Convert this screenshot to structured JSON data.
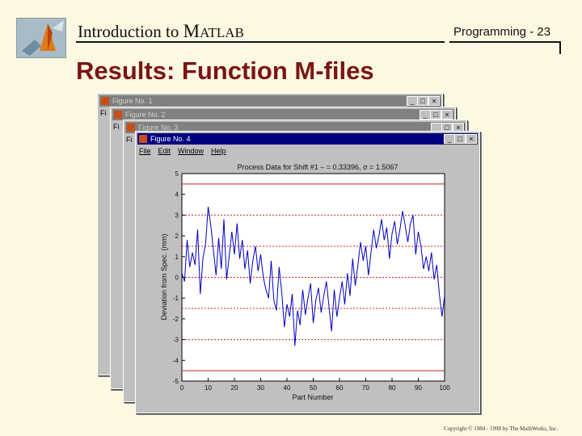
{
  "header": {
    "title_intro": "Introduction to ",
    "title_m": "M",
    "title_rest": "ATLAB",
    "program_label": "Programming - 23"
  },
  "slide_title": "Results: Function M-files",
  "copyright": "Copyright © 1984 - 1998 by The MathWorks, Inc.",
  "windows": [
    {
      "title": "Figure No. 1",
      "stub": "Fi"
    },
    {
      "title": "Figure No. 2",
      "stub": "Fi"
    },
    {
      "title": "Figure No. 3",
      "stub": "Fi"
    },
    {
      "title": "Figure No. 4"
    }
  ],
  "window_buttons": {
    "minimize": "_",
    "maximize": "□",
    "close": "×"
  },
  "menu": [
    "File",
    "Edit",
    "Window",
    "Help"
  ],
  "colors": {
    "title_red": "#7a1414",
    "background": "#fdf8e1",
    "active_title": "#000080",
    "series": "#0000c0",
    "limit_line": "#cc2222"
  },
  "chart_data": {
    "type": "line",
    "title": "Process Data for Shift #1 – = 0.33396, σ = 1.5067",
    "xlabel": "Part Number",
    "ylabel": "Deviation from Spec. (mm)",
    "xlim": [
      0,
      100
    ],
    "ylim": [
      -5,
      5
    ],
    "xticks": [
      0,
      10,
      20,
      30,
      40,
      50,
      60,
      70,
      80,
      90,
      100
    ],
    "yticks": [
      5,
      4,
      3,
      2,
      1,
      0,
      -1,
      -2,
      -3,
      -4,
      -5
    ],
    "ytick_labels": [
      "5",
      "4",
      "3",
      "2",
      "1",
      "0",
      "-1",
      "-2",
      "-3",
      "-4",
      "-5"
    ],
    "reference_lines": [
      {
        "y": 4.5,
        "style": "solid"
      },
      {
        "y": 3.0,
        "style": "dashed"
      },
      {
        "y": 1.5,
        "style": "dashed"
      },
      {
        "y": 0.0,
        "style": "dashed"
      },
      {
        "y": -1.5,
        "style": "dashed"
      },
      {
        "y": -3.0,
        "style": "dashed"
      },
      {
        "y": -4.5,
        "style": "solid"
      }
    ],
    "series": [
      {
        "x": [
          0,
          1,
          2,
          3,
          4,
          5,
          6,
          7,
          8,
          9,
          10,
          11,
          12,
          13,
          14,
          15,
          16,
          17,
          18,
          19,
          20,
          21,
          22,
          23,
          24,
          25,
          26,
          27,
          28,
          29,
          30,
          31,
          32,
          33,
          34,
          35,
          36,
          37,
          38,
          39,
          40,
          41,
          42,
          43,
          44,
          45,
          46,
          47,
          48,
          49,
          50,
          51,
          52,
          53,
          54,
          55,
          56,
          57,
          58,
          59,
          60,
          61,
          62,
          63,
          64,
          65,
          66,
          67,
          68,
          69,
          70,
          71,
          72,
          73,
          74,
          75,
          76,
          77,
          78,
          79,
          80,
          81,
          82,
          83,
          84,
          85,
          86,
          87,
          88,
          89,
          90,
          91,
          92,
          93,
          94,
          95,
          96,
          97,
          98,
          99,
          100
        ],
        "y": [
          0.2,
          -0.2,
          1.8,
          0.5,
          1.2,
          0.6,
          2.3,
          -0.8,
          0.9,
          1.6,
          3.4,
          2.5,
          1.3,
          0.1,
          1.9,
          0.4,
          2.8,
          -0.1,
          1.0,
          2.2,
          1.1,
          2.6,
          0.9,
          1.8,
          0.4,
          1.3,
          -0.3,
          0.8,
          1.5,
          0.3,
          1.1,
          0.0,
          -0.6,
          -1.0,
          0.8,
          -1.1,
          -1.6,
          0.5,
          -0.7,
          -2.4,
          -1.3,
          -1.9,
          -0.8,
          -3.3,
          -1.6,
          -2.3,
          -0.6,
          -1.8,
          -1.0,
          -0.3,
          -2.2,
          -1.1,
          -0.5,
          -1.7,
          -0.9,
          -0.2,
          -1.4,
          -2.6,
          -0.6,
          -1.9,
          -1.0,
          -0.2,
          -1.3,
          0.2,
          -0.9,
          0.9,
          -0.4,
          0.6,
          1.7,
          0.8,
          1.5,
          0.1,
          1.2,
          2.3,
          1.4,
          2.0,
          2.8,
          1.8,
          2.4,
          0.9,
          2.1,
          2.7,
          1.6,
          2.3,
          3.2,
          2.5,
          1.7,
          2.6,
          3.0,
          1.1,
          2.2,
          1.5,
          0.4,
          1.0,
          0.3,
          1.2,
          -0.1,
          0.6,
          -0.8,
          -1.9,
          -0.9
        ]
      }
    ]
  }
}
